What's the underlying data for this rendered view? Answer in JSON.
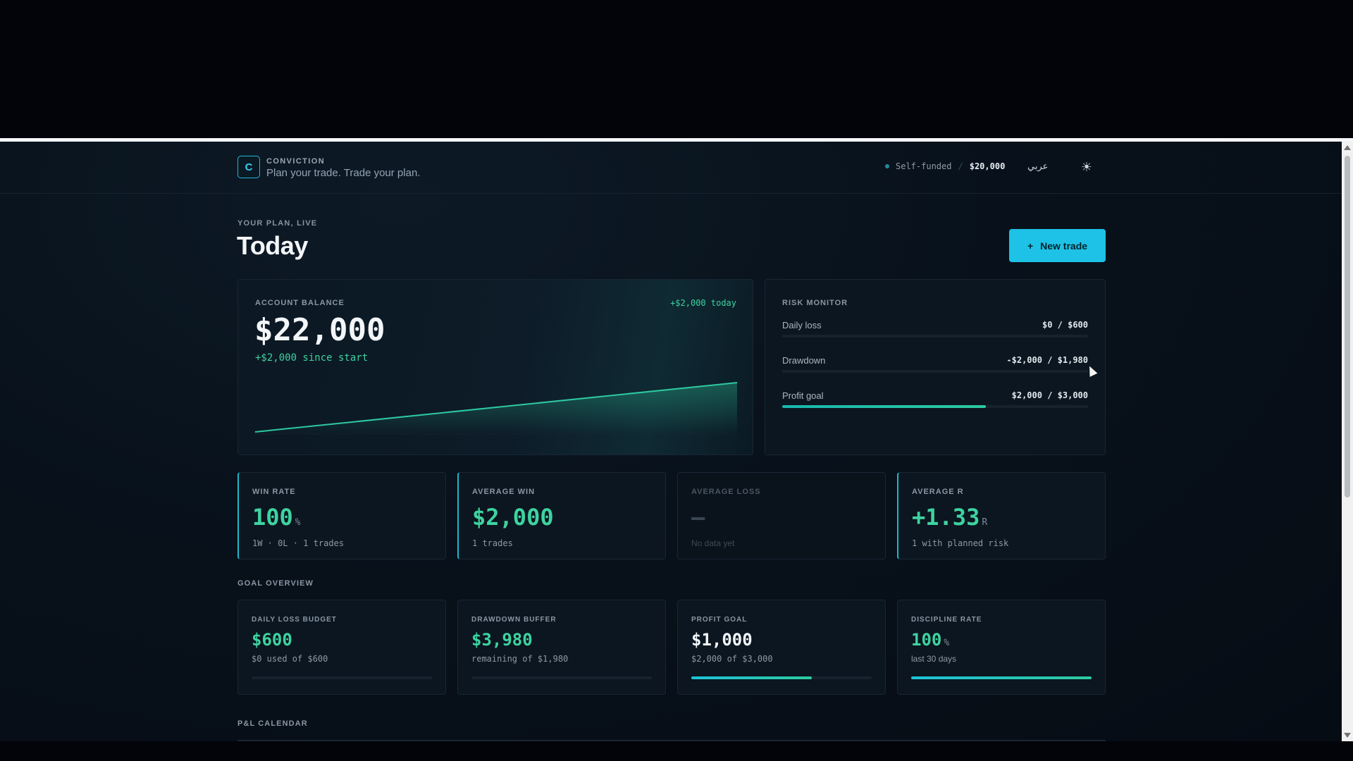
{
  "header": {
    "logo_letter": "C",
    "brand": "CONVICTION",
    "tagline": "Plan your trade. Trade your plan.",
    "account_mode": "Self-funded",
    "separator": "/",
    "account_size": "$20,000",
    "language_label": "عربي",
    "theme_icon": "sun-icon"
  },
  "page": {
    "eyebrow": "YOUR PLAN, LIVE",
    "title": "Today",
    "new_trade_plus": "+",
    "new_trade_label": "New trade"
  },
  "balance": {
    "label": "ACCOUNT BALANCE",
    "today_change": "+$2,000 today",
    "value": "$22,000",
    "since_start": "+$2,000 since start",
    "line_color": "#2ec9a0"
  },
  "chart_data": {
    "type": "area",
    "x": [
      0,
      1
    ],
    "series": [
      {
        "values": [
          20000,
          22000
        ]
      }
    ],
    "ylim": [
      20000,
      22000
    ]
  },
  "risk": {
    "label": "RISK MONITOR",
    "rows": [
      {
        "name": "Daily loss",
        "value": "$0 / $600",
        "progress": 0
      },
      {
        "name": "Drawdown",
        "value": "-$2,000 / $1,980",
        "progress": 0
      },
      {
        "name": "Profit goal",
        "value": "$2,000 / $3,000",
        "progress": 0.667
      }
    ]
  },
  "stats": [
    {
      "label": "WIN RATE",
      "value": "100",
      "unit": "%",
      "sub": "1W · 0L · 1 trades"
    },
    {
      "label": "AVERAGE WIN",
      "value": "$2,000",
      "unit": "",
      "sub": "1 trades"
    },
    {
      "label": "AVERAGE LOSS",
      "value": "—",
      "unit": "",
      "sub": "No data yet"
    },
    {
      "label": "AVERAGE R",
      "value": "+1.33",
      "unit": "R",
      "sub": "1 with planned risk"
    }
  ],
  "goal_overview": {
    "label": "GOAL OVERVIEW",
    "cards": [
      {
        "label": "DAILY LOSS BUDGET",
        "value": "$600",
        "unit": "",
        "sub": "$0 used of $600",
        "progress": 0
      },
      {
        "label": "DRAWDOWN BUFFER",
        "value": "$3,980",
        "unit": "",
        "sub": "remaining of $1,980",
        "progress": 0
      },
      {
        "label": "PROFIT GOAL",
        "value": "$1,000",
        "unit": "",
        "sub": "$2,000 of $3,000",
        "progress": 0.667
      },
      {
        "label": "DISCIPLINE RATE",
        "value": "100",
        "unit": "%",
        "sub": "last 30 days",
        "progress": 1.0
      }
    ]
  },
  "calendar": {
    "label": "P&L CALENDAR"
  },
  "colors": {
    "accent": "#1ec2e6",
    "positive": "#3ed3a0",
    "background": "#08111b"
  }
}
